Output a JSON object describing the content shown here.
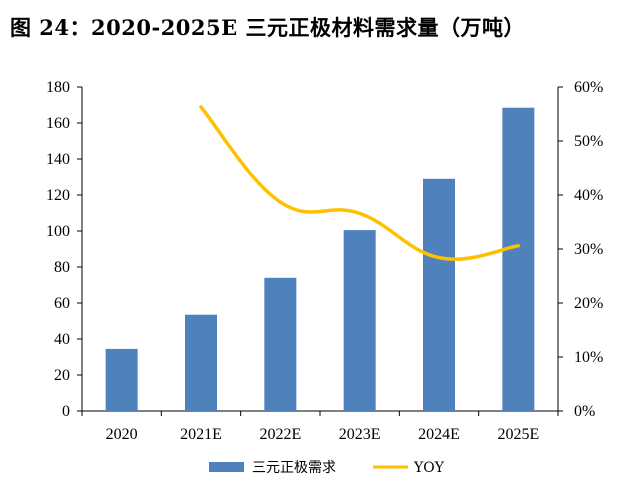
{
  "figure": {
    "title": "图 24：2020-2025E 三元正极材料需求量（万吨）"
  },
  "chart_data": {
    "type": "bar",
    "title": "图 24：2020-2025E 三元正极材料需求量（万吨）",
    "categories": [
      "2020",
      "2021E",
      "2022E",
      "2023E",
      "2024E",
      "2025E"
    ],
    "series": [
      {
        "name": "三元正极需求",
        "type": "bar",
        "axis": "left",
        "color": "#4F81BD",
        "values": [
          34.5,
          53.5,
          74,
          100.5,
          129,
          168.5
        ]
      },
      {
        "name": "YOY",
        "type": "line",
        "axis": "right",
        "color": "#FFC000",
        "values": [
          null,
          56.3,
          38.7,
          36.6,
          28.4,
          30.6
        ]
      }
    ],
    "y_left": {
      "min": 0,
      "max": 180,
      "step": 20,
      "ticks": [
        "0",
        "20",
        "40",
        "60",
        "80",
        "100",
        "120",
        "140",
        "160",
        "180"
      ]
    },
    "y_right": {
      "min": 0,
      "max": 60,
      "step": 10,
      "ticks": [
        "0%",
        "10%",
        "20%",
        "30%",
        "40%",
        "50%",
        "60%"
      ]
    },
    "legend": {
      "position": "bottom",
      "items": [
        "三元正极需求",
        "YOY"
      ]
    }
  }
}
